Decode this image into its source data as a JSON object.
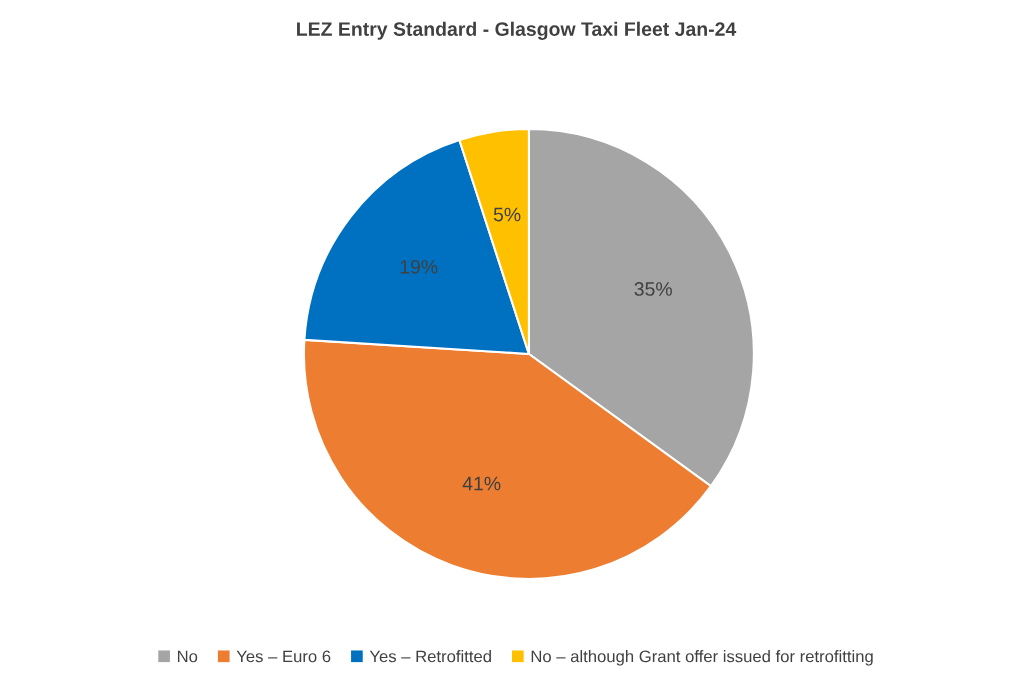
{
  "chart_data": {
    "type": "pie",
    "title": "LEZ Entry Standard - Glasgow Taxi Fleet Jan-24",
    "categories": [
      "No",
      "Yes – Euro 6",
      "Yes – Retrofitted",
      "No – although Grant offer issued for retrofitting"
    ],
    "values": [
      35,
      41,
      19,
      5
    ],
    "colors": [
      "#a5a5a5",
      "#ed7d31",
      "#0070c0",
      "#ffc000"
    ],
    "value_labels": [
      "35%",
      "41%",
      "19%",
      "5%"
    ],
    "legend": "bottom"
  }
}
